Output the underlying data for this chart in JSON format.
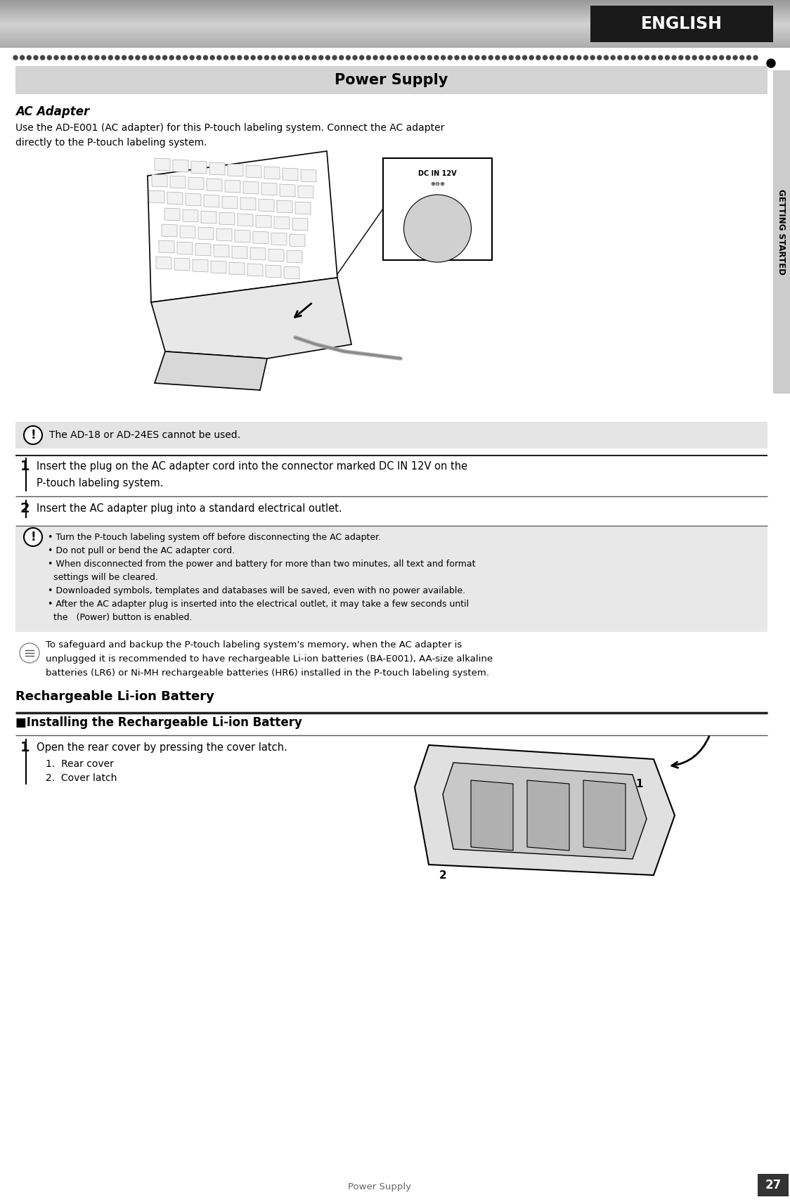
{
  "page_bg": "#ffffff",
  "header_english_bg": "#1a1a1a",
  "header_english_text": "ENGLISH",
  "side_tab_bg": "#cccccc",
  "side_tab_text": "GETTING STARTED",
  "dot_line_color": "#444444",
  "title_section_bg": "#d4d4d4",
  "title_text": "Power Supply",
  "section_header_ac": "AC Adapter",
  "ac_body_line1": "Use the AD-E001 (AC adapter) for this P-touch labeling system. Connect the AC adapter",
  "ac_body_line2": "directly to the P-touch labeling system.",
  "warning_bg": "#e4e4e4",
  "warning_text": "The AD-18 or AD-24ES cannot be used.",
  "step1_num": "1",
  "step1_text": "Insert the plug on the AC adapter cord into the connector marked DC IN 12V on the\nP-touch labeling system.",
  "step2_num": "2",
  "step2_text": "Insert the AC adapter plug into a standard electrical outlet.",
  "notes_bg": "#e8e8e8",
  "notes_lines": [
    "• Turn the P-touch labeling system off before disconnecting the AC adapter.",
    "• Do not pull or bend the AC adapter cord.",
    "• When disconnected from the power and battery for more than two minutes, all text and format",
    "  settings will be cleared.",
    "• Downloaded symbols, templates and databases will be saved, even with no power available.",
    "• After the AC adapter plug is inserted into the electrical outlet, it may take a few seconds until",
    "  the   (Power) button is enabled."
  ],
  "memo_lines": [
    "To safeguard and backup the P-touch labeling system's memory, when the AC adapter is",
    "unplugged it is recommended to have rechargeable Li-ion batteries (BA-E001), AA-size alkaline",
    "batteries (LR6) or Ni-MH rechargeable batteries (HR6) installed in the P-touch labeling system."
  ],
  "section_header_rechargeable": "Rechargeable Li-ion Battery",
  "subsection_header": "■Installing the Rechargeable Li-ion Battery",
  "step1b_num": "1",
  "step1b_text_line1": "Open the rear cover by pressing the cover latch.",
  "step1b_text_line2": "1.  Rear cover",
  "step1b_text_line3": "2.  Cover latch",
  "footer_text": "Power Supply",
  "footer_page": "27",
  "line_color": "#555555",
  "text_color": "#000000",
  "heavy_line_color": "#222222"
}
